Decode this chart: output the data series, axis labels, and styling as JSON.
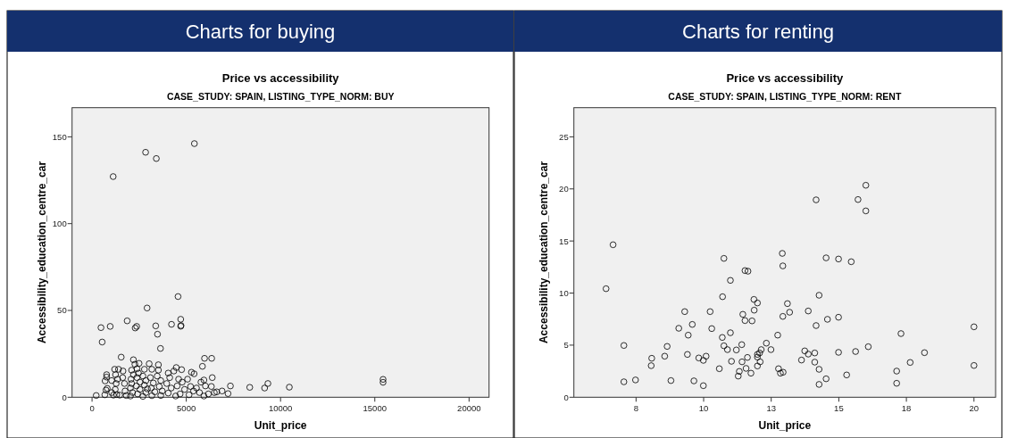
{
  "chart_data": [
    {
      "type": "scatter",
      "annotations": [
        "Charts for buying"
      ],
      "title": "Price vs accessibility",
      "subtitle": "CASE_STUDY: SPAIN, LISTING_TYPE_NORM: BUY",
      "xlabel": "Unit_price",
      "ylabel": "Accessibility_education_centre_car",
      "xlim": [
        -1060,
        21060
      ],
      "ylim": [
        0,
        166.8
      ],
      "xticks": [
        0,
        5000,
        10000,
        15000,
        20000
      ],
      "yticks": [
        0,
        50,
        100,
        150
      ],
      "marker": "circle",
      "grid": false,
      "series": [
        {
          "color": "#000000",
          "x": [
            5430,
            2841,
            3410,
            1121,
            4562,
            2920,
            1863,
            4704,
            4720,
            4704,
            4215,
            3378,
            2368,
            2289,
            963,
            474,
            537,
            3473,
            3631,
            1547,
            5967,
            6346,
            5856,
            6377,
            7340,
            7214,
            6898,
            8366,
            9155,
            9329,
            10466,
            15438,
            15438,
            221,
            773,
            773,
            694,
            805,
            742,
            679,
            1200,
            1405,
            1247,
            1358,
            1279,
            1231,
            1310,
            1137,
            1642,
            1626,
            1721,
            1752,
            1815,
            2194,
            2273,
            2494,
            2099,
            2194,
            2068,
            2099,
            2036,
            2147,
            2036,
            2384,
            2463,
            2384,
            2541,
            2352,
            2541,
            2415,
            2699,
            2778,
            2699,
            2857,
            2778,
            2936,
            2857,
            3031,
            3173,
            3094,
            3252,
            3141,
            3331,
            3173,
            3520,
            3520,
            3457,
            3646,
            3567,
            3725,
            3646,
            4041,
            4120,
            3962,
            4199,
            4041,
            4341,
            4467,
            4751,
            4593,
            4783,
            4514,
            4909,
            4672,
            4436,
            5067,
            5272,
            5414,
            5225,
            5383,
            5146,
            5540,
            5698,
            5777,
            5935,
            6014,
            6172,
            6330,
            6488,
            6614,
            5935,
            1468,
            1042,
            1042
          ],
          "values": [
            146.1,
            141.1,
            137.5,
            127.1,
            58.0,
            51.4,
            44.0,
            44.9,
            41.3,
            40.9,
            42.0,
            41.1,
            40.8,
            39.9,
            40.8,
            40.1,
            31.8,
            36.3,
            28.1,
            23.1,
            22.4,
            22.4,
            17.8,
            11.3,
            6.5,
            2.1,
            3.6,
            5.7,
            5.3,
            7.9,
            5.8,
            10.3,
            8.6,
            1.0,
            13.0,
            11.6,
            9.4,
            5.1,
            4.1,
            1.4,
            16.1,
            16.1,
            13.0,
            10.4,
            7.9,
            4.5,
            1.5,
            1.2,
            15.1,
            11.3,
            7.9,
            3.6,
            1.0,
            21.6,
            19.0,
            19.5,
            15.6,
            13.0,
            10.4,
            7.9,
            5.3,
            2.7,
            0.7,
            16.4,
            13.9,
            11.3,
            8.7,
            6.5,
            4.5,
            1.9,
            0.5,
            16.1,
            12.2,
            9.6,
            7.0,
            4.8,
            2.7,
            19.3,
            16.1,
            11.3,
            8.2,
            5.3,
            3.1,
            0.9,
            18.7,
            15.6,
            12.2,
            9.6,
            6.2,
            3.6,
            1.0,
            13.9,
            11.3,
            7.9,
            5.3,
            2.4,
            15.1,
            17.1,
            15.9,
            10.4,
            8.7,
            6.5,
            4.5,
            1.9,
            0.7,
            10.4,
            14.4,
            13.5,
            6.2,
            3.6,
            1.4,
            5.3,
            2.7,
            8.7,
            9.9,
            6.5,
            1.9,
            6.2,
            2.7,
            3.1,
            0.7,
            1.2,
            9.6,
            2.7
          ]
        }
      ]
    },
    {
      "type": "scatter",
      "annotations": [
        "Charts for renting"
      ],
      "title": "Price vs accessibility",
      "subtitle": "CASE_STUDY: SPAIN, LISTING_TYPE_NORM: RENT",
      "xlabel": "Unit_price",
      "ylabel": "Accessibility_education_centre_car",
      "xlim": [
        5.2,
        20.8
      ],
      "ylim": [
        0,
        27.8
      ],
      "xticks": [
        {
          "value": 7.5,
          "label": "8"
        },
        10,
        {
          "value": 12.5,
          "label": "13"
        },
        15,
        {
          "value": 17.5,
          "label": "18"
        },
        20
      ],
      "yticks": [
        0,
        5,
        10,
        15,
        20,
        25
      ],
      "marker": "circle",
      "grid": false,
      "series": [
        {
          "color": "#000000",
          "x": [
            6.39,
            6.65,
            7.05,
            7.05,
            7.48,
            8.08,
            8.06,
            8.56,
            8.65,
            8.79,
            9.08,
            9.3,
            9.4,
            9.43,
            9.58,
            9.64,
            9.82,
            9.99,
            9.99,
            10.09,
            10.24,
            10.3,
            10.58,
            10.69,
            10.7,
            10.75,
            10.75,
            10.88,
            10.99,
            10.99,
            11.03,
            11.21,
            11.28,
            11.32,
            11.41,
            11.42,
            11.45,
            11.53,
            11.53,
            11.57,
            11.62,
            11.64,
            11.75,
            11.79,
            11.86,
            11.87,
            11.99,
            11.99,
            11.99,
            11.99,
            12.07,
            12.09,
            12.13,
            12.32,
            12.49,
            12.74,
            12.77,
            12.84,
            12.94,
            12.91,
            12.93,
            12.93,
            13.1,
            13.18,
            13.62,
            13.74,
            13.87,
            13.87,
            14.11,
            14.11,
            14.16,
            14.16,
            14.27,
            14.27,
            14.27,
            14.53,
            14.53,
            14.58,
            14.99,
            14.99,
            14.99,
            15.29,
            15.46,
            15.62,
            15.71,
            16.0,
            16.0,
            16.09,
            17.14,
            17.14,
            17.3,
            17.64,
            18.17,
            20.0,
            20.0
          ],
          "values": [
            10.42,
            14.64,
            4.97,
            1.48,
            1.66,
            3.74,
            3.03,
            3.94,
            4.88,
            1.6,
            6.62,
            8.22,
            4.11,
            5.96,
            6.99,
            1.57,
            3.77,
            3.54,
            1.11,
            3.94,
            8.22,
            6.59,
            2.74,
            5.74,
            9.65,
            13.33,
            4.94,
            4.57,
            11.22,
            6.19,
            3.45,
            4.54,
            2.03,
            2.48,
            5.05,
            3.4,
            7.96,
            12.16,
            7.36,
            2.77,
            3.82,
            12.1,
            2.31,
            7.33,
            9.39,
            8.36,
            9.05,
            4.11,
            3.85,
            3.0,
            4.25,
            3.4,
            4.57,
            5.19,
            4.57,
            5.96,
            2.74,
            2.31,
            2.4,
            13.81,
            12.61,
            7.76,
            8.99,
            8.16,
            3.57,
            4.45,
            8.28,
            4.14,
            4.25,
            3.37,
            18.95,
            6.88,
            9.79,
            2.68,
            1.23,
            13.38,
            1.77,
            7.48,
            13.27,
            7.68,
            4.31,
            2.14,
            13.01,
            4.39,
            18.98,
            20.35,
            17.89,
            4.85,
            2.51,
            1.34,
            6.11,
            3.34,
            4.28,
            6.76,
            3.05
          ]
        }
      ]
    }
  ]
}
